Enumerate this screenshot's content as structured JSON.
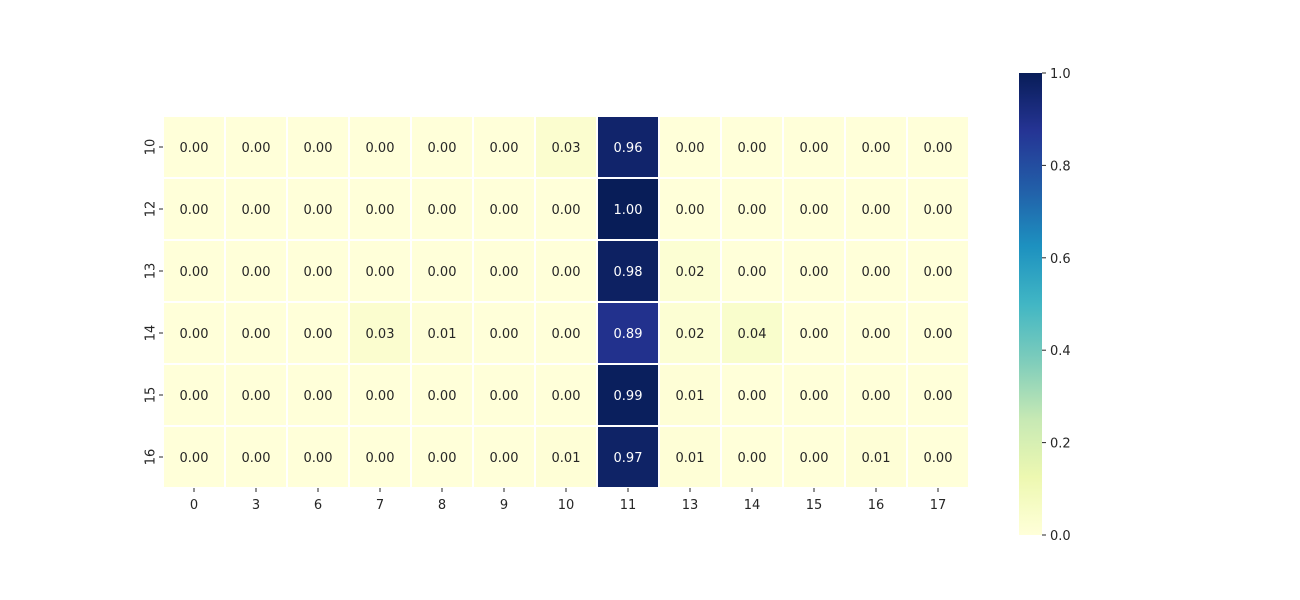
{
  "chart_data": {
    "type": "heatmap",
    "title": "",
    "xlabel": "",
    "ylabel": "",
    "x_categories": [
      "0",
      "3",
      "6",
      "7",
      "8",
      "9",
      "10",
      "11",
      "13",
      "14",
      "15",
      "16",
      "17"
    ],
    "y_categories": [
      "10",
      "12",
      "13",
      "14",
      "15",
      "16"
    ],
    "values": [
      [
        0.0,
        0.0,
        0.0,
        0.0,
        0.0,
        0.0,
        0.03,
        0.96,
        0.0,
        0.0,
        0.0,
        0.0,
        0.0
      ],
      [
        0.0,
        0.0,
        0.0,
        0.0,
        0.0,
        0.0,
        0.0,
        1.0,
        0.0,
        0.0,
        0.0,
        0.0,
        0.0
      ],
      [
        0.0,
        0.0,
        0.0,
        0.0,
        0.0,
        0.0,
        0.0,
        0.98,
        0.02,
        0.0,
        0.0,
        0.0,
        0.0
      ],
      [
        0.0,
        0.0,
        0.0,
        0.03,
        0.01,
        0.0,
        0.0,
        0.89,
        0.02,
        0.04,
        0.0,
        0.0,
        0.0
      ],
      [
        0.0,
        0.0,
        0.0,
        0.0,
        0.0,
        0.0,
        0.0,
        0.99,
        0.01,
        0.0,
        0.0,
        0.0,
        0.0
      ],
      [
        0.0,
        0.0,
        0.0,
        0.0,
        0.0,
        0.0,
        0.01,
        0.97,
        0.01,
        0.0,
        0.0,
        0.01,
        0.0
      ]
    ],
    "annotation_format": "0.00",
    "colormap": "YlGnBu",
    "colorbar": {
      "vmin": 0.0,
      "vmax": 1.0,
      "ticks": [
        0.0,
        0.2,
        0.4,
        0.6,
        0.8,
        1.0
      ],
      "tick_labels": [
        "0.0",
        "0.2",
        "0.4",
        "0.6",
        "0.8",
        "1.0"
      ]
    },
    "legend_position": "right"
  }
}
